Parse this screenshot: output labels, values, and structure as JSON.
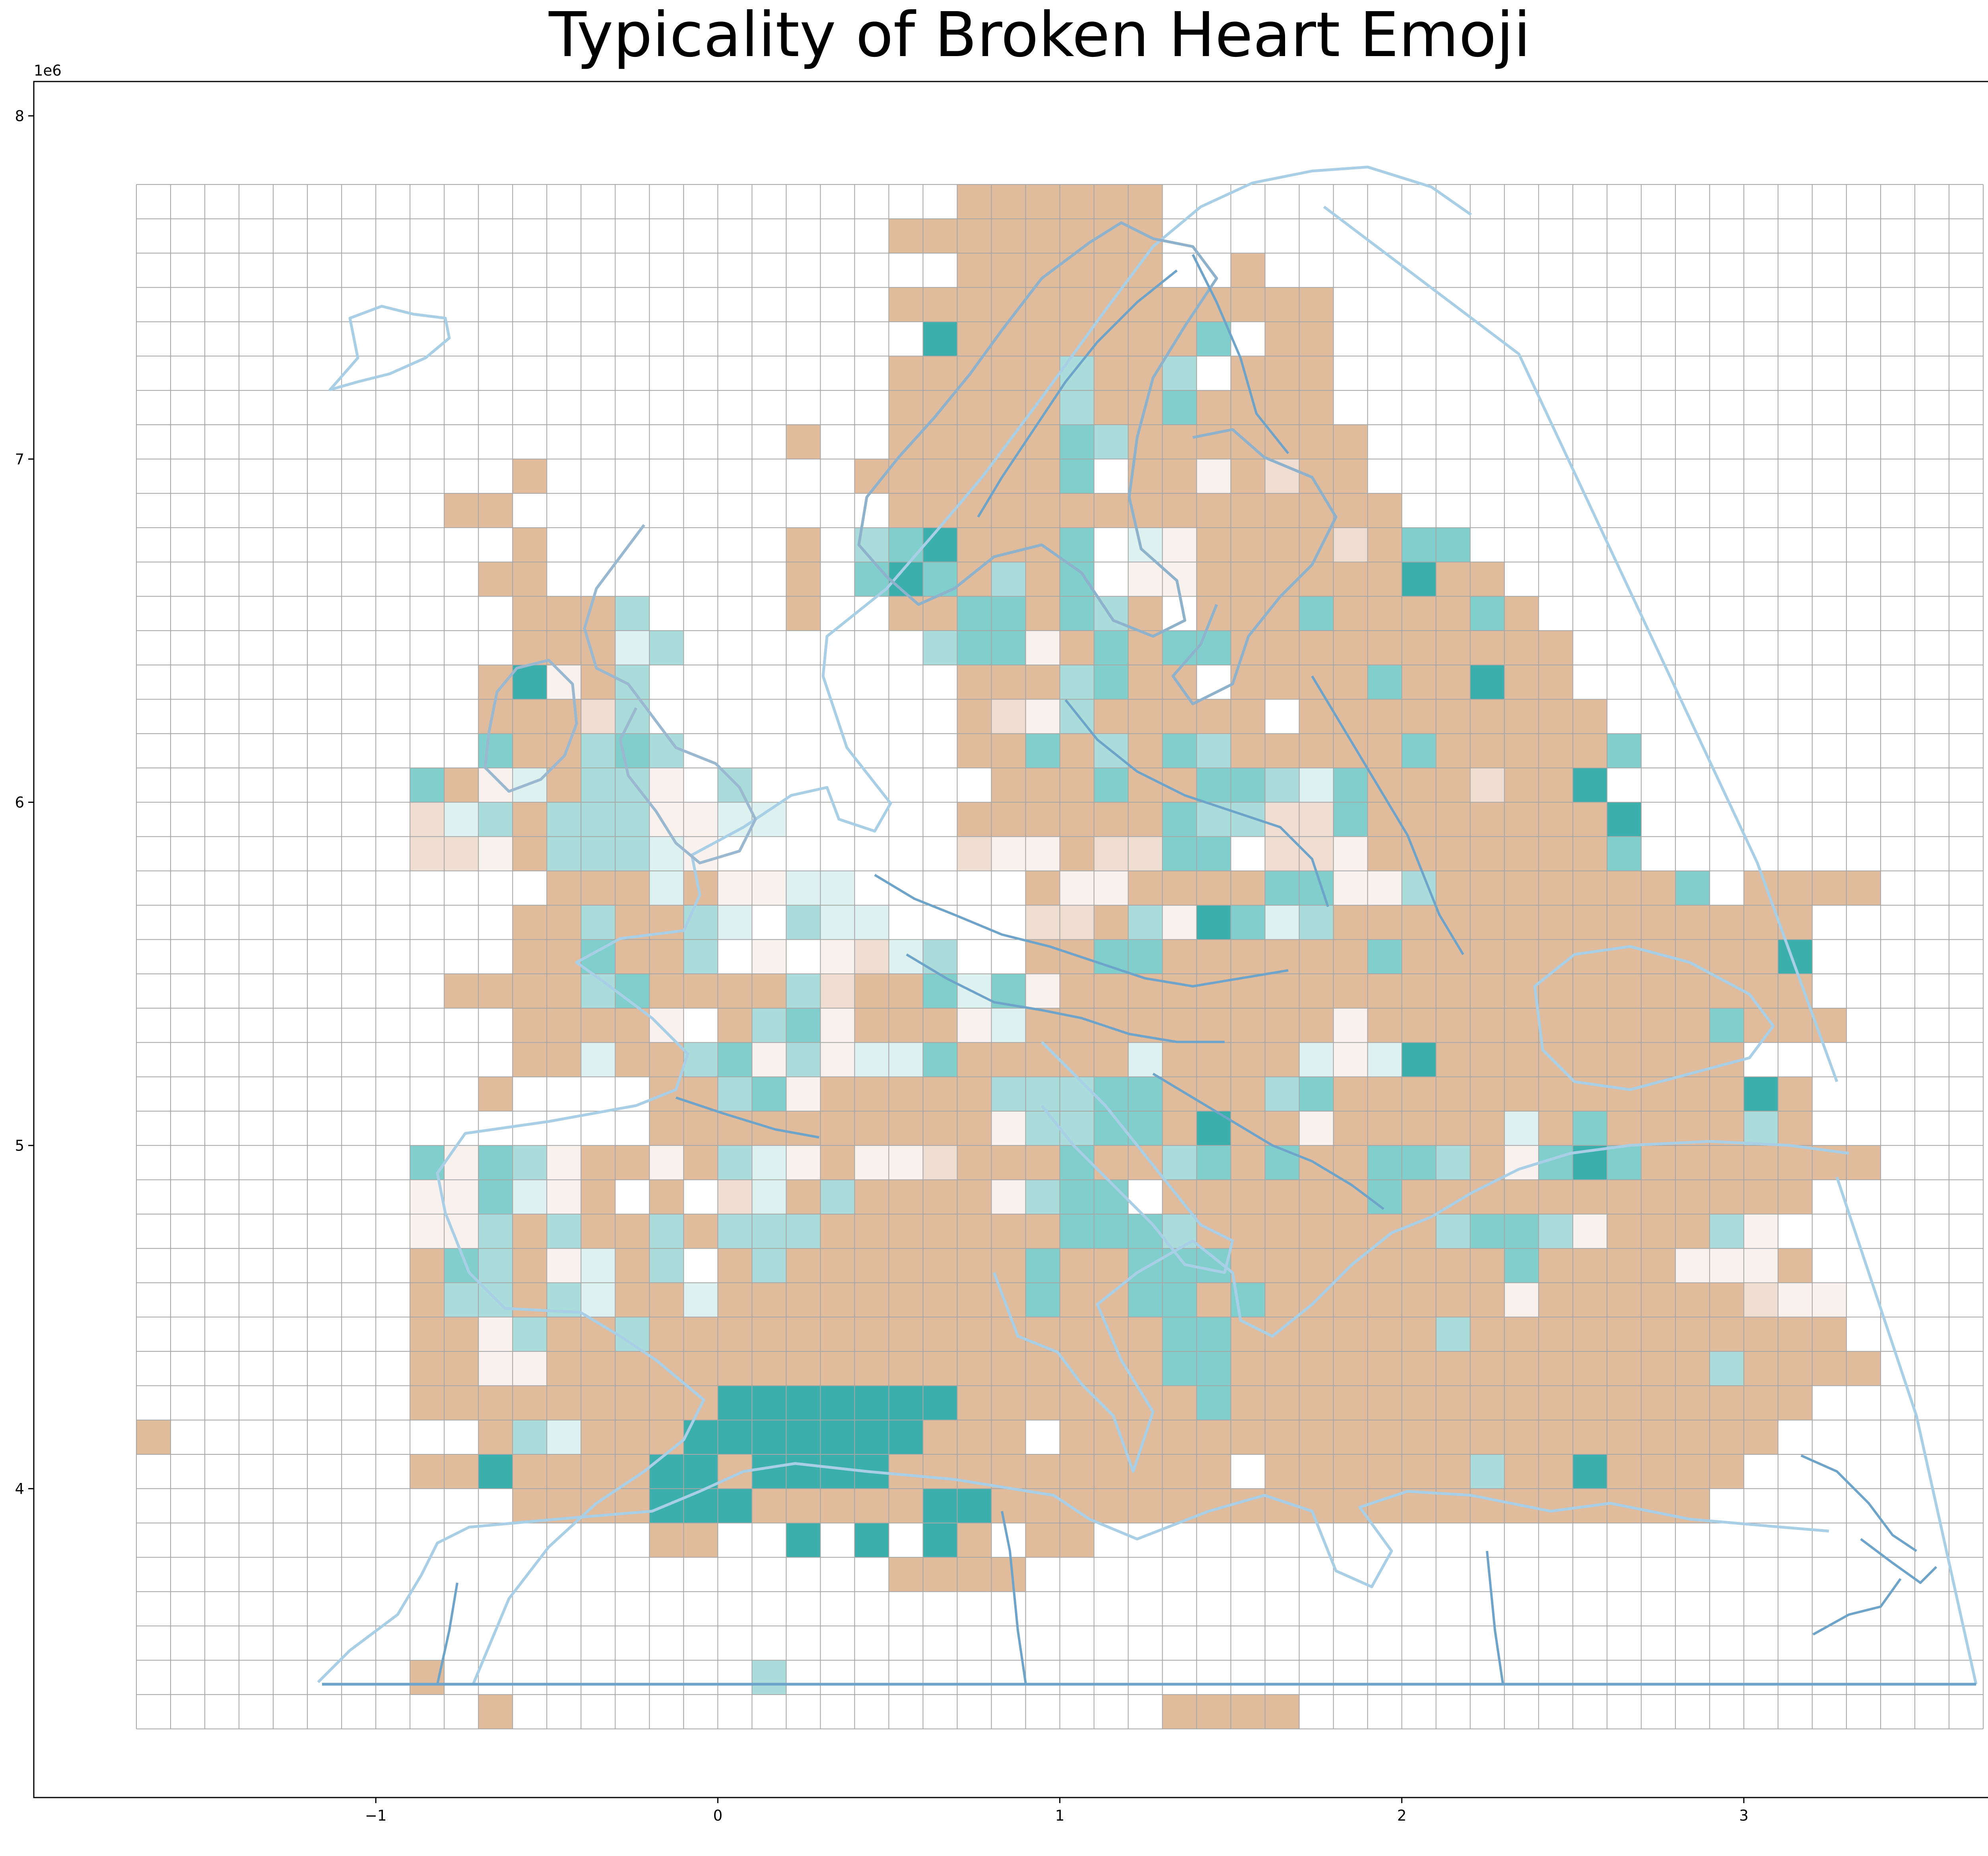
{
  "chart_data": {
    "type": "heatmap",
    "title": "Typicality of Broken Heart Emoji",
    "x_offset_label": "1e6",
    "y_offset_label": "1e6",
    "xlim": [
      -2.0,
      3.9
    ],
    "ylim": [
      3.1,
      8.1
    ],
    "x_ticks": [
      -1,
      0,
      1,
      2,
      3
    ],
    "y_ticks": [
      4,
      5,
      6,
      7,
      8
    ],
    "grid": {
      "x0": -1.7,
      "y0": 3.3,
      "cell": 0.1,
      "ncols": 54,
      "nrows": 45
    },
    "colors": {
      "tan": "#e0bb9c",
      "light_tan": "#f0ddd2",
      "pale": "#f8f1ee",
      "white_cell": "#ffffff",
      "pale_teal": "#ddf1f1",
      "light_teal": "#a9dcdb",
      "mid_teal": "#80cfcc",
      "teal": "#3aafab",
      "gridline": "#a6a6a6",
      "coast": "#a9cfe6",
      "border": "#6ea4c9"
    },
    "cells_note": "row strings from top (north) to bottom; T=tan t=light tan p=pale w=white . empty c=pale teal l=light teal m=mid teal d=teal",
    "rows": [
      "........................TTTTTT........................",
      "......................TTTTTTTT.......................",
      "......................wwTTTTTTwwT....................",
      "......................TTTTTTTTTTTTT.................",
      "......................wdTTTTTTTmwTT.................",
      "......................TTTTTlTTlwTTT.................",
      "......................TTTTTlTTmTTTTw...............",
      "...................T..TTTTTmlTTTTTTTw...............",
      "...........T.........TTTTTTmwTTpTtTT...............",
      ".........TT...........TTTTTTTTTTTTTTT...............",
      "...........T.......T.lmdTTTmwcpTTTTtTmm..............",
      "..........TT.......T.mdmTlTmwppTTTTTTdTT.............",
      "...........TTTl....T..TTmmTmlTwTTTmTTTTmT.............",
      "...........TTTcl.......lmmpTmTmmTTTTTTTTTT............",
      "..........TdpTl.........TTTlmTTwTTTTmTTdTT............",
      "..........TTTtlw........TtplTTTTTwTTTTTTTTT...........",
      "..........mTTlmlw.......TTmTlTmlTTTTTmTTTTTm..........",
      "........mTpcTllpwl.......TTTmTTmmlcmTTTtTTd...........",
      "........tclTlllppcc.....TTTTTTmllttmTTTTTTTd..........",
      "........ttpTlllcpw......tppTttmmwttpTTTTTTTmww.........",
      "............TTTcTppcc.....TppTTTTmmpplTTTTTTTmwTTTT.....",
      "...........TTlTTlcwlcc...wttTlpdmclTTTTTTTTTTTTTT.....",
      "...........TTmTTlwpwptcl..TTmmTTTTTTmTTTTTTTTTTTd.....",
      ".........TTTTlmTTTTltTTmcmpTTTTTTTTTTTTTTTTTTTTTT....",
      "...........TTTTpwTlmpTTTpcTTTTTTTTTpTTTTTTTTTTmTTT.....",
      "...........TTcTTlmplpccmTTTTTcTTTTcpcdTTTTTTTTT.....",
      "..........T....TTlmpTTTTTlllmmTTTlmTTTTTTTTTTTTdT......",
      "...............TTTTTTTTTTpllmmTdTTpTTTTTcTmTTTTlT......",
      "........mpmlpTTpTlcpTpptTTTmTTlmTmTTmmlTpmdmTTTTTTT.......",
      "........ppmcpTwTwtcTlTTTTplmmwTTTTTTmTTTTTTTTTTTT.......",
      "........pplTlTTlTlllTTTTTTTmmmlTTTTTTTlmmlpTTTlp........",
      "........TmlTpcTlwTlTTTTTTTmTTmmmTTTTTTTTmTTTTpppT.......",
      "........TllTlcTTcTTTTTTTTTmTTmmTmTTTTTTTpTTTTTTtpp.......",
      "........TTplTTlTTTTTTTTTTTTTTTmmTTTTTTlTTTTTTTTTTT......",
      "........TTppTTTTTTTTTTTTTTTTTTmmTTTTTTTTTTTTTTlTTTT.....",
      "........TTTTTTTTTdddddddTTTTTTTmTTTTTTTTTTTTTTTTT........",
      "T.........TlcTTTdddddddTTTwTTTTTTTTTTTTTTTTTTTTT.........",
      "........TTdTTTTddTddddTTTTTTTTTTwTTTTTTlTTdTTTT........",
      "...........TTTTdddTTTTTddTTTTTTTTTTTTTTTTTTTTT........",
      "...............TT..d.d.dT.TT..........................",
      "......................TTTT............................",
      "......................................................",
      "......................................................",
      "........T.........l...................................",
      "..........T...................TTTT...................."
    ]
  }
}
